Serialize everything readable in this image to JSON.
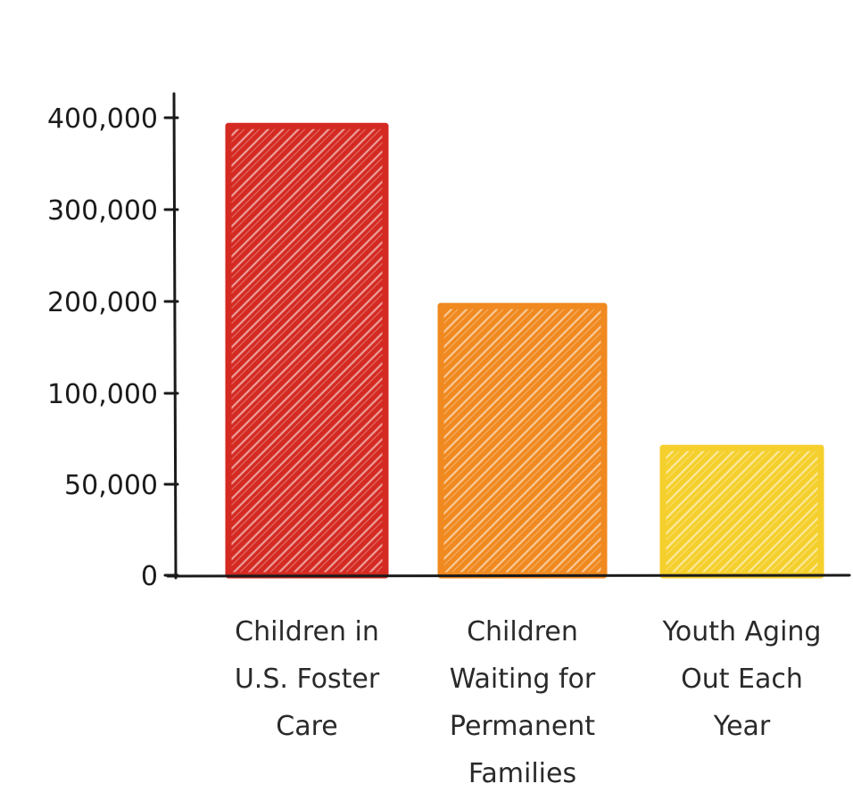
{
  "chart_data": {
    "type": "bar",
    "title": "",
    "xlabel": "",
    "ylabel": "",
    "categories": [
      [
        "Children in",
        "U.S. Foster",
        "Care"
      ],
      [
        "Children",
        "Waiting for",
        "Permanent",
        "Families"
      ],
      [
        "Youth Aging",
        "Out Each",
        "Year"
      ]
    ],
    "values": [
      391000,
      195000,
      70000
    ],
    "bar_colors": [
      "#d42a22",
      "#f0891f",
      "#f5cf2c"
    ],
    "y_ticks": [
      {
        "value": 0,
        "label": "0"
      },
      {
        "value": 50000,
        "label": "50,000"
      },
      {
        "value": 100000,
        "label": "100,000"
      },
      {
        "value": 200000,
        "label": "200,000"
      },
      {
        "value": 300000,
        "label": "300,000"
      },
      {
        "value": 400000,
        "label": "400,000"
      }
    ],
    "grid": false,
    "legend": "none"
  }
}
